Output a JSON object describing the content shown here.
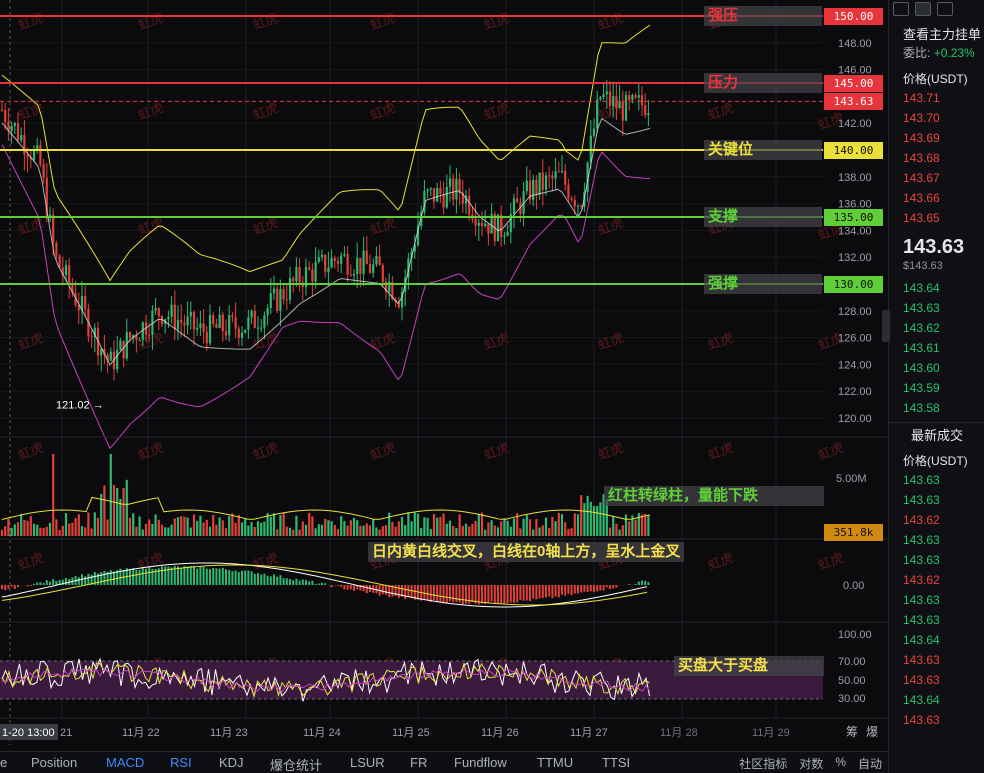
{
  "price_scale": [
    "150.00",
    "148.00",
    "146.00",
    "145.00",
    "142.00",
    "140.00",
    "138.00",
    "136.00",
    "134.00",
    "132.00",
    "130.00",
    "128.00",
    "126.00",
    "124.00",
    "122.00",
    "120.00"
  ],
  "price_ticks": [
    {
      "v": 148,
      "t": "148.00"
    },
    {
      "v": 146,
      "t": "146.00"
    },
    {
      "v": 142,
      "t": "142.00"
    },
    {
      "v": 138,
      "t": "138.00"
    },
    {
      "v": 136,
      "t": "136.00"
    },
    {
      "v": 134,
      "t": "134.00"
    },
    {
      "v": 132,
      "t": "132.00"
    },
    {
      "v": 128,
      "t": "128.00"
    },
    {
      "v": 126,
      "t": "126.00"
    },
    {
      "v": 124,
      "t": "124.00"
    },
    {
      "v": 122,
      "t": "122.00"
    },
    {
      "v": 120,
      "t": "120.00"
    }
  ],
  "levels": [
    {
      "price": 150,
      "label": "150.00",
      "text": "强压",
      "color": "#e8343b",
      "textColor": "#e8343b"
    },
    {
      "price": 145,
      "label": "145.00",
      "text": "压力",
      "color": "#e8343b",
      "textColor": "#e8343b"
    },
    {
      "price": 140,
      "label": "140.00",
      "text": "关键位",
      "color": "#e9e03a",
      "textColor": "#e9e03a"
    },
    {
      "price": 135,
      "label": "135.00",
      "text": "支撑",
      "color": "#5fcf38",
      "textColor": "#5fcf38"
    },
    {
      "price": 130,
      "label": "130.00",
      "text": "强撑",
      "color": "#5fcf38",
      "textColor": "#5fcf38"
    }
  ],
  "current_price": {
    "value": 143.63,
    "label": "143.63"
  },
  "low_marker": {
    "value": 121.02,
    "label": "121.02 →"
  },
  "volume": {
    "scale_label": "5.00M",
    "current_label": "351.8k"
  },
  "macd_scale": "0.00",
  "rsi_scale": [
    "100.00",
    "70.00",
    "50.00",
    "30.00"
  ],
  "annotations": {
    "volume": "红柱转绿柱，量能下跌",
    "macd": "日内黄白线交叉，白线在0轴上方，呈水上金叉",
    "rsi": "买盘大于买盘"
  },
  "x_axis": [
    "1-20 13:00",
    "21",
    "11月 22",
    "11月 23",
    "11月 24",
    "11月 25",
    "11月 26",
    "11月 27",
    "11月 28",
    "11月 29"
  ],
  "watermark": "虹虎",
  "side": {
    "title": "查看主力挂单",
    "ratio_label": "委比:",
    "ratio_value": "+0.23%",
    "price_header": "价格(USDT)",
    "asks": [
      "143.71",
      "143.70",
      "143.69",
      "143.68",
      "143.67",
      "143.66",
      "143.65"
    ],
    "last_price": "143.63",
    "last_price_usd": "$143.63",
    "bids": [
      "143.64",
      "143.63",
      "143.62",
      "143.61",
      "143.60",
      "143.59",
      "143.58"
    ],
    "trades_title": "最新成交",
    "trades_header": "价格(USDT)",
    "trades": [
      {
        "p": "143.63",
        "c": "green"
      },
      {
        "p": "143.63",
        "c": "green"
      },
      {
        "p": "143.62",
        "c": "red"
      },
      {
        "p": "143.63",
        "c": "green"
      },
      {
        "p": "143.63",
        "c": "green"
      },
      {
        "p": "143.62",
        "c": "red"
      },
      {
        "p": "143.63",
        "c": "green"
      },
      {
        "p": "143.63",
        "c": "green"
      },
      {
        "p": "143.64",
        "c": "green"
      },
      {
        "p": "143.63",
        "c": "red"
      },
      {
        "p": "143.63",
        "c": "red"
      },
      {
        "p": "143.64",
        "c": "green"
      },
      {
        "p": "143.63",
        "c": "red"
      }
    ]
  },
  "tabs": [
    "e",
    "Position",
    "MACD",
    "RSI",
    "KDJ",
    "爆仓统计",
    "LSUR",
    "FR",
    "Fundflow",
    "TTMU",
    "TTSI"
  ],
  "active_tabs": [
    "MACD",
    "RSI"
  ],
  "bottom_right": [
    "社区指标",
    "对数",
    "%",
    "自动"
  ],
  "corner_labels": [
    "筹",
    "爆"
  ]
}
